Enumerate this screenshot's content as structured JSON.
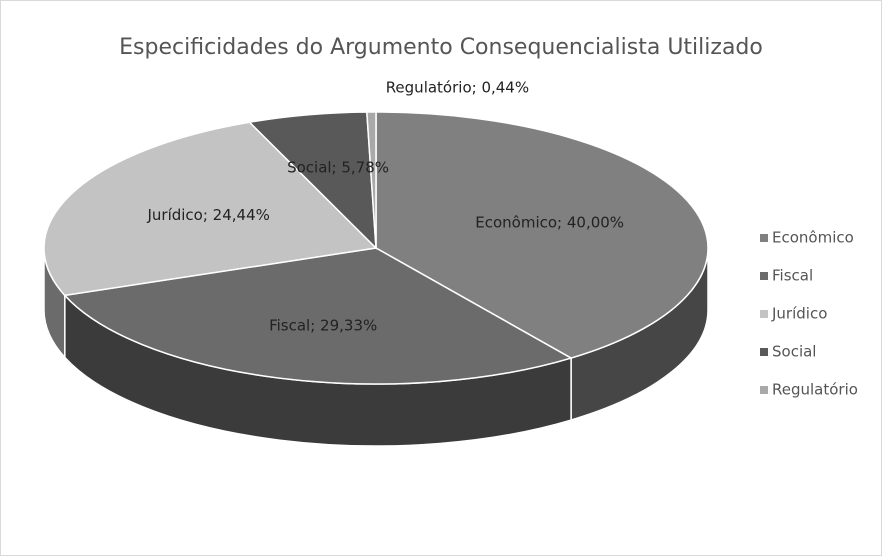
{
  "chart_data": {
    "type": "pie",
    "title": "Especificidades do Argumento Consequencialista Utilizado",
    "categories": [
      "Econômico",
      "Fiscal",
      "Jurídico",
      "Social",
      "Regulatório"
    ],
    "values": [
      40.0,
      29.33,
      24.44,
      5.78,
      0.44
    ],
    "value_labels": [
      "Econômico; 40,00%",
      "Fiscal; 29,33%",
      "Jurídico; 24,44%",
      "Social; 5,78%",
      "Regulatório; 0,44%"
    ],
    "colors": [
      "#808080",
      "#6b6b6b",
      "#c3c3c3",
      "#595959",
      "#a9a9a9"
    ],
    "legend": "right"
  }
}
